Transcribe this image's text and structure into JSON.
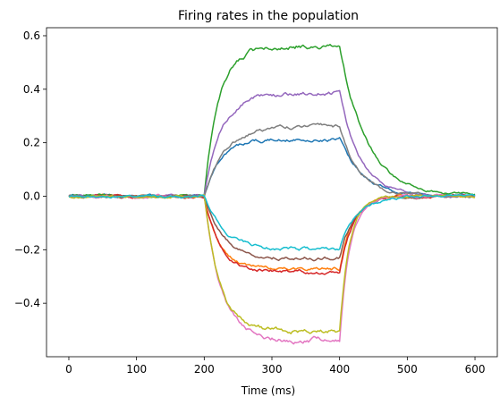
{
  "chart_data": {
    "type": "line",
    "title": "Firing rates in the population",
    "xlabel": "Time (ms)",
    "ylabel": "",
    "xlim": [
      -33,
      633
    ],
    "ylim": [
      -0.6,
      0.63
    ],
    "xticks": [
      0,
      100,
      200,
      300,
      400,
      500,
      600
    ],
    "yticks": [
      -0.4,
      -0.2,
      0.0,
      0.2,
      0.4,
      0.6
    ],
    "ytick_labels": [
      "−0.4",
      "−0.2",
      "0.0",
      "0.2",
      "0.4",
      "0.6"
    ],
    "xtick_labels": [
      "0",
      "100",
      "200",
      "300",
      "400",
      "500",
      "600"
    ],
    "grid": false,
    "legend": "none",
    "series": [
      {
        "color": "#1f77b4",
        "plateau": 0.215,
        "tau_on": 25,
        "tau_off": 35,
        "seed": 1
      },
      {
        "color": "#ff7f0e",
        "plateau": -0.27,
        "tau_on": 22,
        "tau_off": 18,
        "seed": 2
      },
      {
        "color": "#2ca02c",
        "plateau": 0.565,
        "tau_on": 22,
        "tau_off": 40,
        "seed": 3
      },
      {
        "color": "#d62728",
        "plateau": -0.283,
        "tau_on": 24,
        "tau_off": 20,
        "seed": 4
      },
      {
        "color": "#9467bd",
        "plateau": 0.385,
        "tau_on": 24,
        "tau_off": 30,
        "seed": 5
      },
      {
        "color": "#8c564b",
        "plateau": -0.232,
        "tau_on": 28,
        "tau_off": 22,
        "seed": 6
      },
      {
        "color": "#e377c2",
        "plateau": -0.538,
        "tau_on": 25,
        "tau_off": 15,
        "seed": 7
      },
      {
        "color": "#7f7f7f",
        "plateau": 0.26,
        "tau_on": 30,
        "tau_off": 28,
        "seed": 8
      },
      {
        "color": "#bcbd22",
        "plateau": -0.505,
        "tau_on": 22,
        "tau_off": 15,
        "seed": 9
      },
      {
        "color": "#17becf",
        "plateau": -0.2,
        "tau_on": 30,
        "tau_off": 25,
        "seed": 10
      }
    ],
    "stimulus_window_ms": [
      200,
      400
    ],
    "duration_ms": 600
  }
}
